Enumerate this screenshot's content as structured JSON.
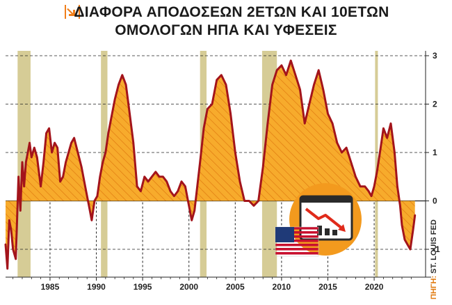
{
  "header": {
    "title_line1": "ΔΙΑΦΟΡΑ ΑΠΟΔΟΣΕΩΝ 2ΕΤΩΝ ΚΑΙ 10ΕΤΩΝ",
    "title_line2": "ΟΜΟΛΟΓΩΝ ΗΠΑ ΚΑΙ ΥΦΕΣΕΙΣ"
  },
  "source": {
    "prefix": "ΠΗΓΗ:",
    "text": "ST. LOUIS FED"
  },
  "colors": {
    "line": "#a3141b",
    "fill": "#f5a524",
    "hatch": "#e07a10",
    "recession": "#d6cc96",
    "accent": "#f39a1e",
    "brand": "#f07e1a"
  },
  "chart_data": {
    "type": "area",
    "x_ticks": [
      1985,
      1990,
      1995,
      2000,
      2005,
      2010,
      2015,
      2020
    ],
    "x_tick_labels": [
      "1985",
      "1990",
      "1995",
      "2000",
      "2005",
      "2010",
      "2015",
      "2020"
    ],
    "y_ticks": [
      3,
      2,
      1,
      0,
      -1
    ],
    "y_tick_labels": [
      "3",
      "2",
      "1",
      "0",
      "-1"
    ],
    "xlim": [
      1980.2,
      2024.5
    ],
    "ylim": [
      -1.5,
      3.1
    ],
    "recessions": [
      [
        1981.5,
        1982.9
      ],
      [
        1990.5,
        1991.2
      ],
      [
        2001.2,
        2001.9
      ],
      [
        2007.9,
        2009.5
      ],
      [
        2020.1,
        2020.4
      ]
    ],
    "series": [
      {
        "x": [
          1980.2,
          1980.4,
          1980.6,
          1980.8,
          1981.0,
          1981.3,
          1981.6,
          1981.8,
          1982.0,
          1982.2,
          1982.4,
          1982.6,
          1982.8,
          1983.0,
          1983.3,
          1983.6,
          1984.0,
          1984.3,
          1984.6,
          1984.9,
          1985.2,
          1985.5,
          1985.8,
          1986.1,
          1986.4,
          1986.7,
          1987.0,
          1987.3,
          1987.6,
          1988.0,
          1988.4,
          1988.8,
          1989.2,
          1989.5,
          1989.8,
          1990.1,
          1990.4,
          1990.7,
          1991.0,
          1991.3,
          1991.6,
          1992.0,
          1992.4,
          1992.8,
          1993.2,
          1993.6,
          1994.0,
          1994.4,
          1994.8,
          1995.2,
          1995.6,
          1996.0,
          1996.4,
          1996.8,
          1997.2,
          1997.6,
          1998.0,
          1998.4,
          1998.8,
          1999.2,
          1999.6,
          2000.0,
          2000.3,
          2000.6,
          2000.9,
          2001.2,
          2001.6,
          2002.0,
          2002.5,
          2003.0,
          2003.5,
          2004.0,
          2004.5,
          2005.0,
          2005.5,
          2006.0,
          2006.5,
          2007.0,
          2007.5,
          2008.0,
          2008.5,
          2009.0,
          2009.5,
          2010.0,
          2010.5,
          2011.0,
          2011.5,
          2012.0,
          2012.5,
          2013.0,
          2013.5,
          2014.0,
          2014.5,
          2015.0,
          2015.5,
          2016.0,
          2016.5,
          2017.0,
          2017.5,
          2018.0,
          2018.5,
          2019.0,
          2019.4,
          2019.7,
          2020.0,
          2020.3,
          2020.7,
          2021.0,
          2021.4,
          2021.8,
          2022.2,
          2022.5,
          2022.8,
          2023.0,
          2023.3,
          2023.6,
          2023.9,
          2024.2,
          2024.4
        ],
        "values": [
          -0.9,
          -1.4,
          -0.4,
          -0.6,
          -1.0,
          -1.2,
          0.5,
          -0.2,
          0.8,
          0.3,
          0.8,
          1.0,
          1.2,
          0.9,
          1.1,
          0.9,
          0.3,
          0.8,
          1.4,
          1.5,
          1.0,
          1.2,
          1.1,
          0.4,
          0.5,
          0.8,
          1.0,
          1.2,
          1.3,
          1.0,
          0.7,
          0.3,
          -0.1,
          -0.4,
          0.0,
          0.1,
          0.5,
          0.8,
          1.0,
          1.4,
          1.7,
          2.1,
          2.4,
          2.6,
          2.4,
          1.8,
          1.2,
          0.3,
          0.2,
          0.5,
          0.4,
          0.5,
          0.6,
          0.5,
          0.5,
          0.4,
          0.2,
          0.1,
          0.2,
          0.4,
          0.3,
          -0.1,
          -0.4,
          -0.2,
          0.3,
          0.8,
          1.5,
          1.9,
          2.0,
          2.5,
          2.6,
          2.4,
          1.8,
          1.0,
          0.4,
          0.0,
          0.0,
          -0.1,
          0.0,
          0.7,
          1.6,
          2.4,
          2.7,
          2.8,
          2.6,
          2.9,
          2.6,
          2.3,
          1.6,
          2.0,
          2.4,
          2.7,
          2.3,
          1.8,
          1.6,
          1.2,
          1.0,
          1.1,
          0.8,
          0.5,
          0.3,
          0.3,
          0.2,
          0.1,
          0.3,
          0.6,
          1.1,
          1.5,
          1.3,
          1.6,
          1.0,
          0.3,
          -0.1,
          -0.5,
          -0.8,
          -0.9,
          -1.0,
          -0.6,
          -0.3
        ]
      }
    ]
  }
}
